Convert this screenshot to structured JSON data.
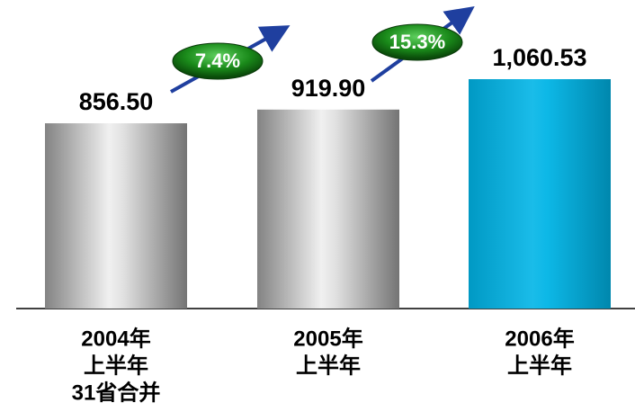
{
  "chart_data": {
    "type": "bar",
    "categories": [
      [
        "2004年",
        "上半年",
        "31省合并"
      ],
      [
        "2005年",
        "上半年"
      ],
      [
        "2006年",
        "上半年"
      ]
    ],
    "values": [
      856.5,
      919.9,
      1060.53
    ],
    "value_labels": [
      "856.50",
      "919.90",
      "1,060.53"
    ],
    "colors": [
      "#9a9a9a",
      "#9a9a9a",
      "#00b4e6"
    ],
    "annotations": [
      "7.4%",
      "15.3%"
    ]
  }
}
